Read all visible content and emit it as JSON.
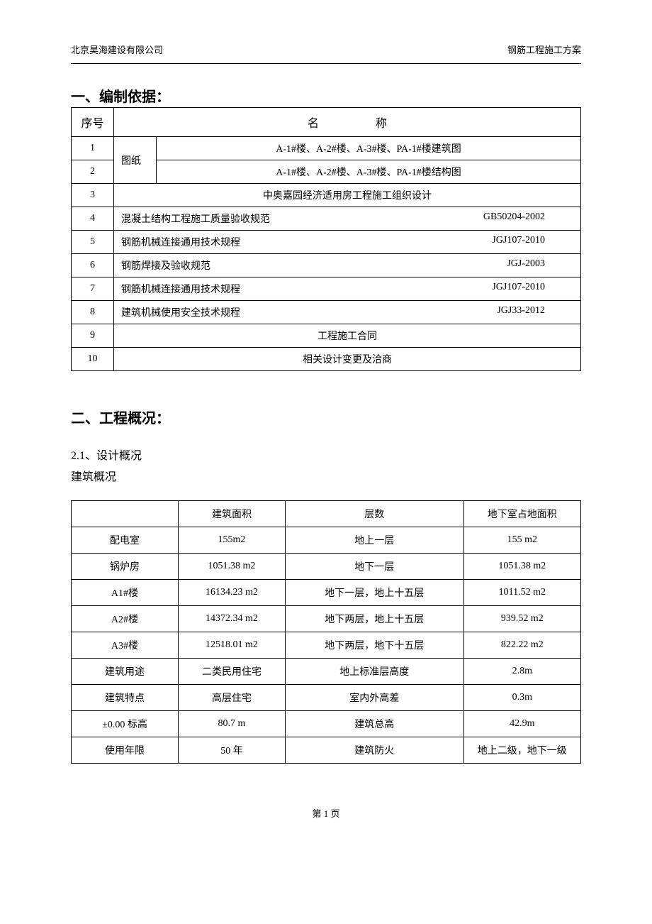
{
  "header": {
    "left": "北京昊海建设有限公司",
    "right": "钢筋工程施工方案"
  },
  "section1": {
    "title": "一、编制依据：",
    "table_headers": {
      "num": "序号",
      "name": "名 称"
    },
    "drawing_label": "图纸",
    "rows": [
      {
        "num": "1",
        "type": "drawing",
        "content": "A-1#楼、A-2#楼、A-3#楼、PA-1#楼建筑图"
      },
      {
        "num": "2",
        "type": "drawing",
        "content": "A-1#楼、A-2#楼、A-3#楼、PA-1#楼结构图"
      },
      {
        "num": "3",
        "type": "center",
        "content": "中奥嘉园经济适用房工程施工组织设计"
      },
      {
        "num": "4",
        "type": "spec",
        "name": "混凝土结构工程施工质量验收规范",
        "code": "GB50204-2002"
      },
      {
        "num": "5",
        "type": "spec",
        "name": "钢筋机械连接通用技术规程",
        "code": "JGJ107-2010"
      },
      {
        "num": "6",
        "type": "spec",
        "name": "钢筋焊接及验收规范",
        "code": "JGJ-2003"
      },
      {
        "num": "7",
        "type": "spec",
        "name": "钢筋机械连接通用技术规程",
        "code": "JGJ107-2010"
      },
      {
        "num": "8",
        "type": "spec",
        "name": "建筑机械使用安全技术规程",
        "code": "JGJ33-2012"
      },
      {
        "num": "9",
        "type": "center",
        "content": "工程施工合同"
      },
      {
        "num": "10",
        "type": "center",
        "content": "相关设计变更及洽商"
      }
    ]
  },
  "section2": {
    "title": "二、工程概况：",
    "sub1": "2.1、设计概况",
    "sub2": "建筑概况",
    "table_headers": {
      "c1": "",
      "c2": "建筑面积",
      "c3": "层数",
      "c4": "地下室占地面积"
    },
    "rows": [
      {
        "c1": "配电室",
        "c2": "155m2",
        "c3": "地上一层",
        "c4": "155 m2"
      },
      {
        "c1": "锅炉房",
        "c2": "1051.38 m2",
        "c3": "地下一层",
        "c4": "1051.38 m2"
      },
      {
        "c1": "A1#楼",
        "c2": "16134.23 m2",
        "c3": "地下一层，地上十五层",
        "c4": "1011.52 m2"
      },
      {
        "c1": "A2#楼",
        "c2": "14372.34 m2",
        "c3": "地下两层，地上十五层",
        "c4": "939.52 m2"
      },
      {
        "c1": "A3#楼",
        "c2": "12518.01 m2",
        "c3": "地下两层，地下十五层",
        "c4": "822.22 m2"
      },
      {
        "c1": "建筑用途",
        "c2": "二类民用住宅",
        "c3": "地上标准层高度",
        "c4": "2.8m"
      },
      {
        "c1": "建筑特点",
        "c2": "高层住宅",
        "c3": "室内外高差",
        "c4": "0.3m"
      },
      {
        "c1": "±0.00 标高",
        "c2": "80.7 m",
        "c3": "建筑总高",
        "c4": "42.9m"
      },
      {
        "c1": "使用年限",
        "c2": "50 年",
        "c3": "建筑防火",
        "c4": "地上二级，地下一级"
      }
    ]
  },
  "footer": "第 1 页"
}
